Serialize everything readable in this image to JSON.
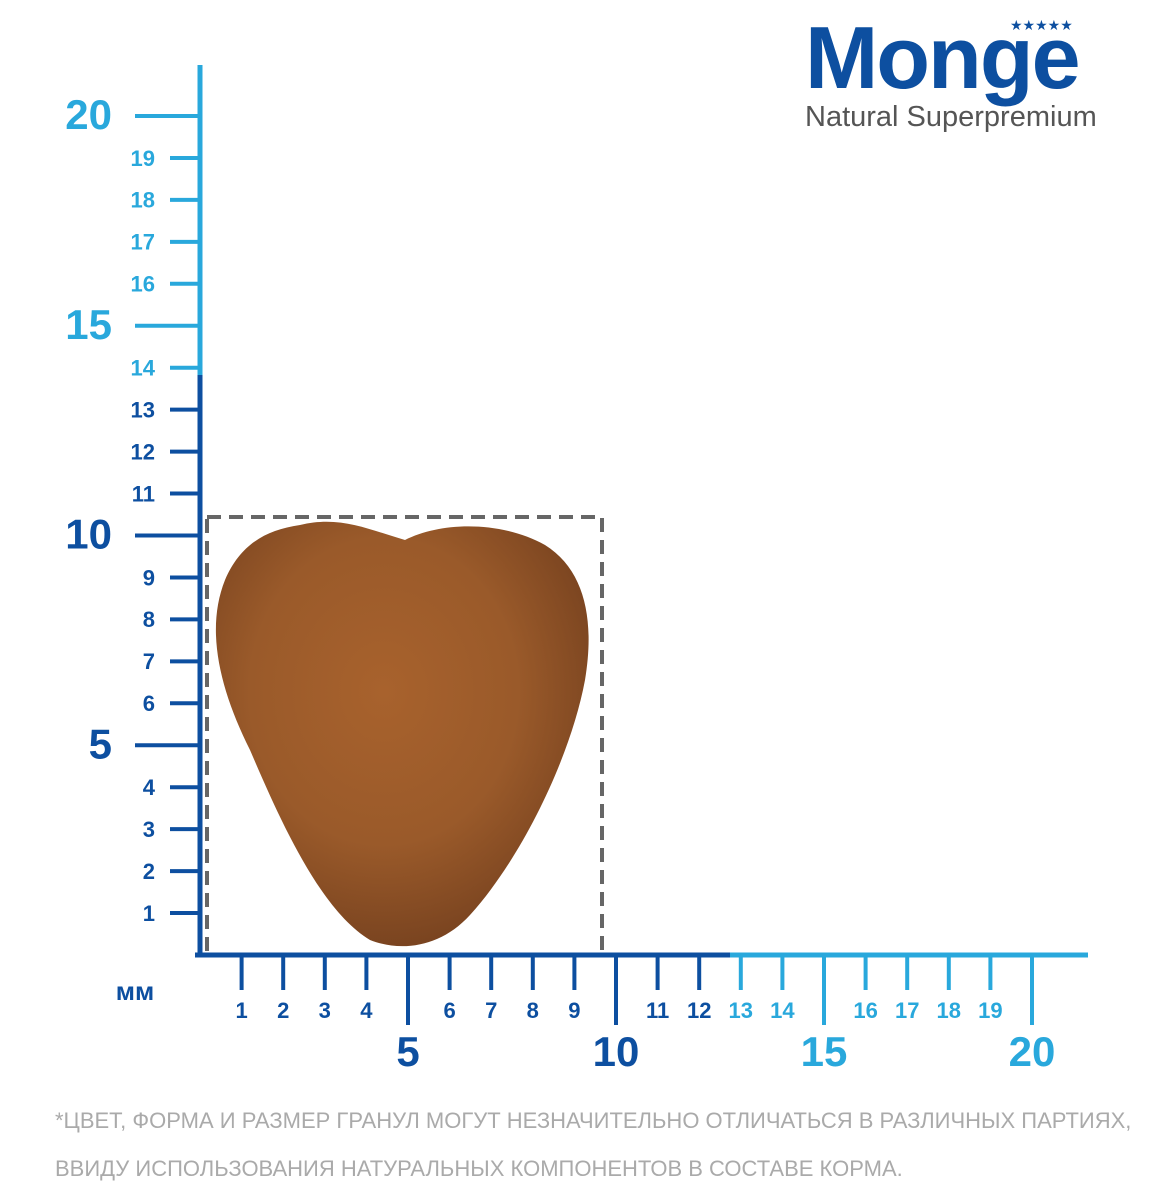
{
  "logo": {
    "brand": "Monge",
    "tagline": "Natural Superpremium"
  },
  "ruler": {
    "unit": "мм",
    "y_minor": [
      1,
      2,
      3,
      4,
      6,
      7,
      8,
      9,
      11,
      12,
      13,
      14,
      16,
      17,
      18,
      19
    ],
    "y_major": [
      5,
      10,
      15,
      20
    ],
    "x_minor": [
      1,
      2,
      3,
      4,
      6,
      7,
      8,
      9,
      11,
      12,
      13,
      14,
      16,
      17,
      18,
      19
    ],
    "x_major": [
      5,
      10,
      15,
      20
    ]
  },
  "note": [
    "*ЦВЕТ, ФОРМА И РАЗМЕР ГРАНУЛ МОГУТ НЕЗНАЧИТЕЛЬНО ОТЛИЧАТЬСЯ В РАЗЛИЧНЫХ ПАРТИЯХ,",
    "ВВИДУ ИСПОЛЬЗОВАНИЯ НАТУРАЛЬНЫХ КОМПОНЕНТОВ В СОСТАВЕ КОРМА."
  ]
}
